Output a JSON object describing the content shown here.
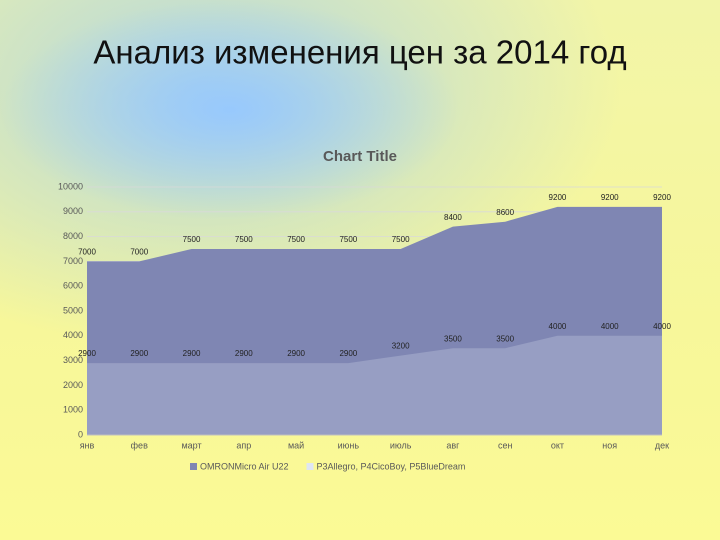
{
  "slide_title": "Анализ изменения цен за 2014 год",
  "chart_data": {
    "type": "area",
    "title": "Chart Title",
    "categories": [
      "янв",
      "фев",
      "март",
      "апр",
      "май",
      "июнь",
      "июль",
      "авг",
      "сен",
      "окт",
      "ноя",
      "дек"
    ],
    "series": [
      {
        "name": "OMRONMicro Air U22",
        "color": "#7f86b3",
        "values": [
          7000,
          7000,
          7500,
          7500,
          7500,
          7500,
          7500,
          8400,
          8600,
          9200,
          9200,
          9200
        ]
      },
      {
        "name": "P3Allegro, P4CicoBoy, P5BlueDream",
        "color": "#dfe6f3",
        "values": [
          2900,
          2900,
          2900,
          2900,
          2900,
          2900,
          3200,
          3500,
          3500,
          4000,
          4000,
          4000
        ]
      }
    ],
    "ylim": [
      0,
      10000
    ],
    "yticks": [
      0,
      1000,
      2000,
      3000,
      4000,
      5000,
      6000,
      7000,
      8000,
      9000,
      10000
    ],
    "grid": true,
    "legend": "bottom"
  }
}
